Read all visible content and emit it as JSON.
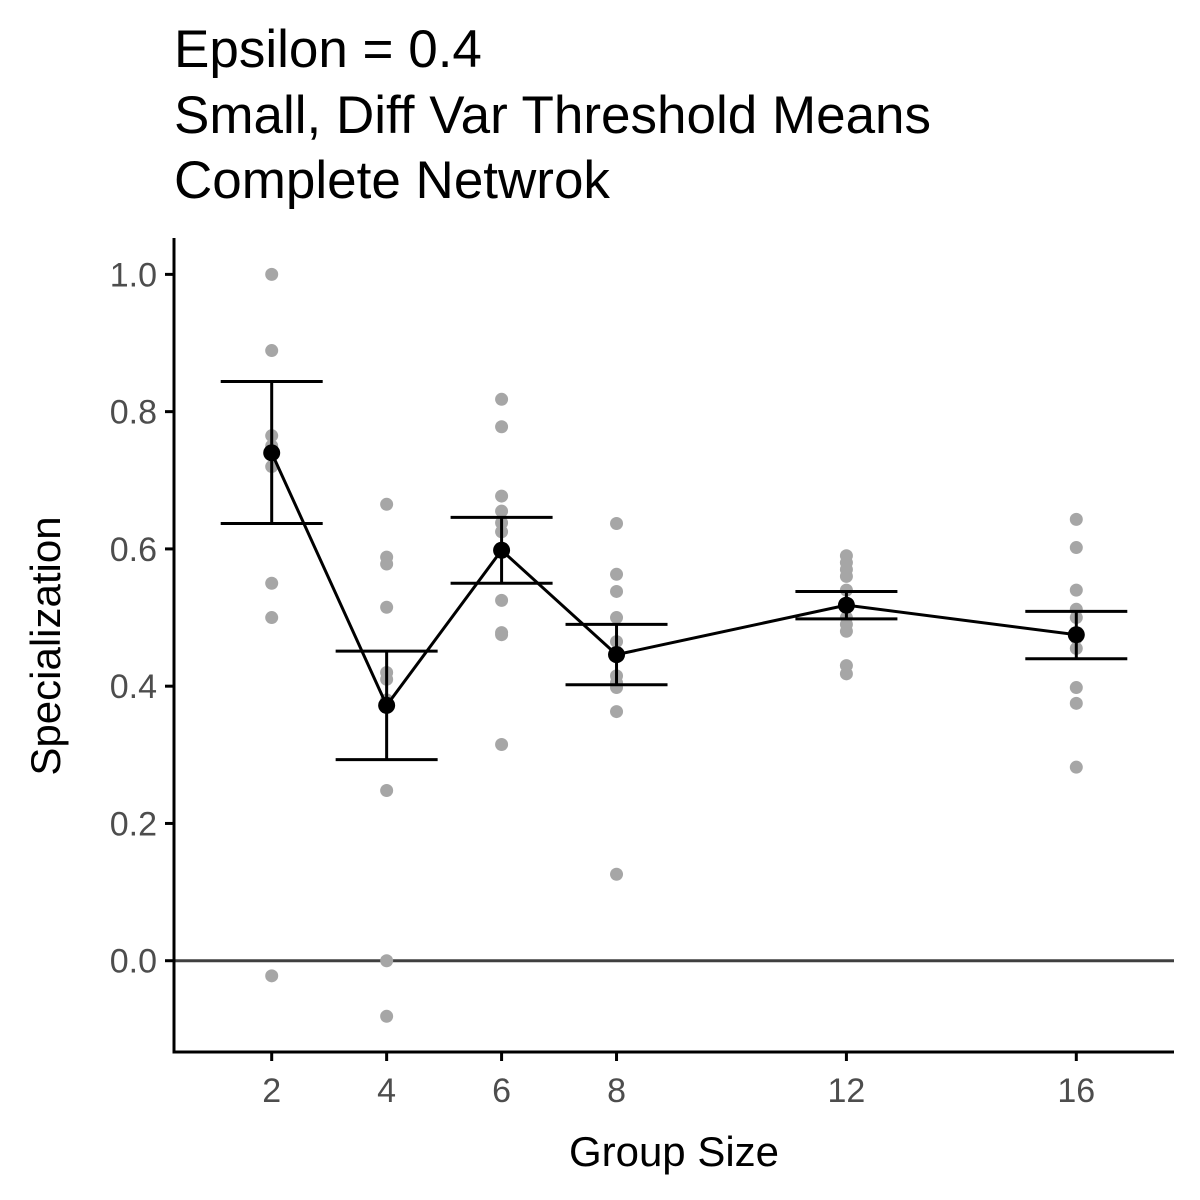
{
  "chart_data": {
    "type": "scatter",
    "title_lines": [
      "Epsilon = 0.4",
      "Small, Diff Var Threshold Means",
      "Complete Netwrok"
    ],
    "xlabel": "Group Size",
    "ylabel": "Specialization",
    "x_ticks": [
      2,
      4,
      6,
      8,
      12,
      16
    ],
    "y_ticks": [
      "0.0",
      "0.2",
      "0.4",
      "0.6",
      "0.8",
      "1.0"
    ],
    "xlim": [
      0.3,
      17.7
    ],
    "ylim": [
      -0.133,
      1.053
    ],
    "reference_line_y": 0,
    "grid": false,
    "legend": "none",
    "colors": {
      "raw_points": "#a6a6a6",
      "summary": "#000000",
      "axis": "#000000",
      "reference_line": "#404040"
    },
    "raw_points": [
      {
        "x": 2,
        "values": [
          1.0,
          0.889,
          0.765,
          0.75,
          0.72,
          0.55,
          0.5,
          -0.022
        ]
      },
      {
        "x": 4,
        "values": [
          0.665,
          0.588,
          0.578,
          0.515,
          0.42,
          0.41,
          0.38,
          0.248,
          0.0,
          -0.081
        ]
      },
      {
        "x": 6,
        "values": [
          0.818,
          0.778,
          0.677,
          0.655,
          0.638,
          0.625,
          0.525,
          0.478,
          0.475,
          0.315
        ]
      },
      {
        "x": 8,
        "values": [
          0.637,
          0.563,
          0.538,
          0.5,
          0.465,
          0.45,
          0.415,
          0.405,
          0.398,
          0.363,
          0.126
        ]
      },
      {
        "x": 12,
        "values": [
          0.59,
          0.58,
          0.57,
          0.56,
          0.54,
          0.52,
          0.5,
          0.49,
          0.48,
          0.43,
          0.418
        ]
      },
      {
        "x": 16,
        "values": [
          0.643,
          0.602,
          0.54,
          0.512,
          0.5,
          0.47,
          0.455,
          0.398,
          0.375,
          0.282
        ]
      }
    ],
    "series": [
      {
        "x": [
          2,
          4,
          6,
          8,
          12,
          16
        ],
        "mean": [
          0.74,
          0.372,
          0.598,
          0.446,
          0.518,
          0.475
        ],
        "lower": [
          0.637,
          0.293,
          0.55,
          0.402,
          0.498,
          0.44
        ],
        "upper": [
          0.844,
          0.451,
          0.646,
          0.49,
          0.538,
          0.509
        ]
      }
    ]
  }
}
